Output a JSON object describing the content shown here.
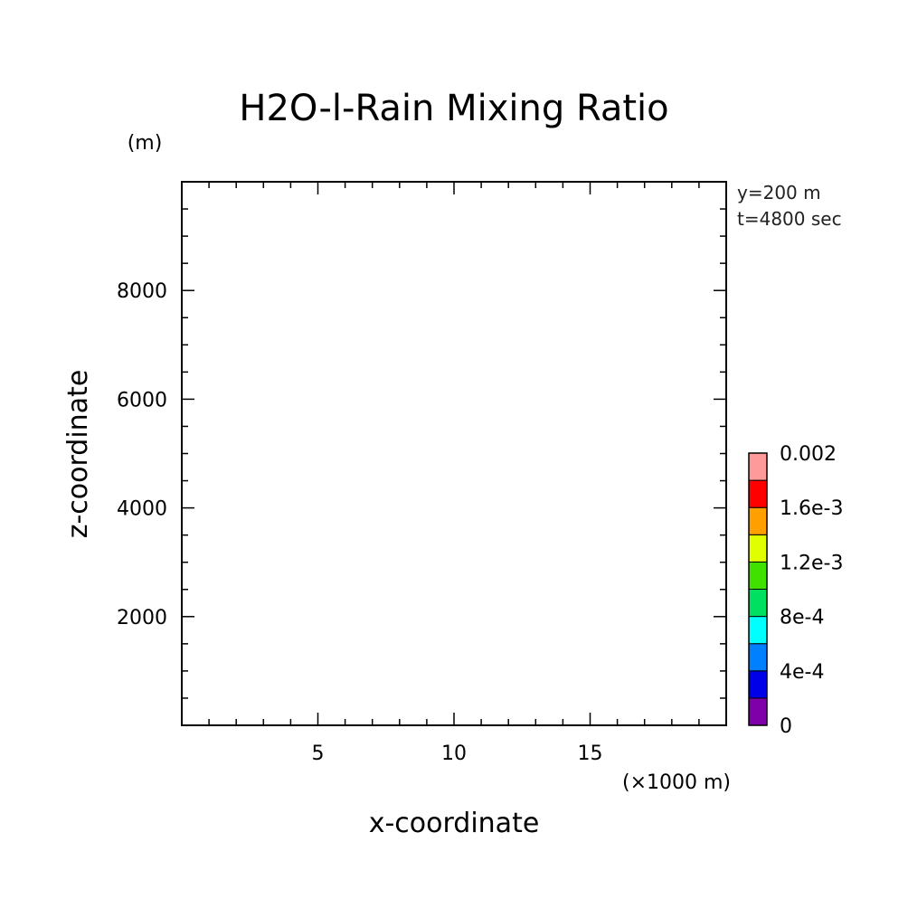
{
  "chart_data": {
    "type": "heatmap",
    "title": "H2O-l-Rain Mixing Ratio",
    "xlabel": "x-coordinate",
    "ylabel": "z-coordinate",
    "x_unit": "(×1000 m)",
    "y_unit": "(m)",
    "xlim": [
      0,
      20
    ],
    "ylim": [
      0,
      10000
    ],
    "x_major_ticks": [
      5,
      10,
      15
    ],
    "x_minor_step": 1,
    "y_major_ticks": [
      2000,
      4000,
      6000,
      8000
    ],
    "y_minor_step": 500,
    "info": [
      "y=200 m",
      "t=4800 sec"
    ],
    "values": [],
    "colorbar": {
      "levels": [
        0,
        0.0002,
        0.0004,
        0.0006,
        0.0008,
        0.001,
        0.0012,
        0.0014,
        0.0016,
        0.0018,
        0.002
      ],
      "colors": [
        "#7f00a8",
        "#0000e8",
        "#0080ff",
        "#00ffff",
        "#00e060",
        "#40e000",
        "#e0ff00",
        "#ffa000",
        "#ff0000",
        "#ff9a9a"
      ],
      "tick_labels": [
        "0",
        "4e-4",
        "8e-4",
        "1.2e-3",
        "1.6e-3",
        "0.002"
      ]
    }
  }
}
